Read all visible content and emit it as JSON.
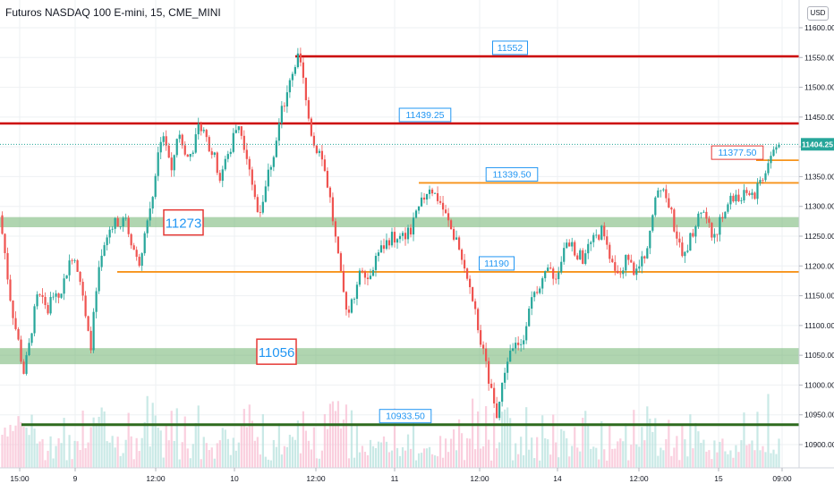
{
  "header": {
    "symbol_title": "Futuros NASDAQ 100 E-mini, 15, CME_MINI",
    "currency_label": "USD"
  },
  "colors": {
    "up_candle": "#26a69a",
    "down_candle": "#ef5350",
    "resistance_red": "#cc0000",
    "level_orange": "#f7931a",
    "support_green": "#2e6b1f",
    "zone_green": "#6fb36f",
    "label_blue": "#2196f3",
    "label_red_border": "#e53935",
    "price_badge": "#26a69a"
  },
  "chart_data": {
    "type": "candlestick",
    "title": "Futuros NASDAQ 100 E-mini, 15, CME_MINI",
    "interval": "15",
    "ylim": [
      10875,
      11650
    ],
    "y_ticks": [
      "11600.00",
      "11550.00",
      "11500.00",
      "11450.00",
      "11400.00",
      "11350.00",
      "11300.00",
      "11250.00",
      "11200.00",
      "11150.00",
      "11100.00",
      "11050.00",
      "11000.00",
      "10950.00",
      "10900.00"
    ],
    "x_ticks": [
      "15:00",
      "9",
      "12:00",
      "10",
      "12:00",
      "11",
      "12:00",
      "14",
      "12:00",
      "15",
      "09:00"
    ],
    "last_price": "11404.25",
    "horizontal_levels": [
      {
        "value": 11552,
        "label": "11552",
        "color": "red",
        "boxed_label": true
      },
      {
        "value": 11439.25,
        "label": "11439.25",
        "color": "red",
        "boxed_label": true
      },
      {
        "value": 11377.5,
        "label": "11377.50",
        "color": "orange",
        "boxed_label": true
      },
      {
        "value": 11339.5,
        "label": "11339.50",
        "color": "orange",
        "boxed_label": true
      },
      {
        "value": 11190,
        "label": "11190",
        "color": "orange",
        "boxed_label": true
      },
      {
        "value": 10933.5,
        "label": "10933.50",
        "color": "green",
        "boxed_label": true
      }
    ],
    "zones": [
      {
        "value": 11273,
        "low": 11265,
        "high": 11282,
        "label": "11273"
      },
      {
        "value": 11056,
        "low": 11035,
        "high": 11062,
        "label": "11056"
      }
    ],
    "price_path": [
      11285,
      11230,
      11160,
      11110,
      11070,
      11020,
      11055,
      11110,
      11150,
      11140,
      11120,
      11155,
      11140,
      11160,
      11190,
      11220,
      11210,
      11170,
      11110,
      11060,
      11140,
      11200,
      11230,
      11260,
      11280,
      11260,
      11280,
      11260,
      11230,
      11200,
      11240,
      11280,
      11320,
      11380,
      11430,
      11400,
      11350,
      11420,
      11410,
      11380,
      11390,
      11410,
      11440,
      11420,
      11400,
      11380,
      11350,
      11370,
      11390,
      11420,
      11440,
      11410,
      11380,
      11330,
      11290,
      11310,
      11350,
      11380,
      11420,
      11460,
      11480,
      11520,
      11550,
      11540,
      11480,
      11430,
      11400,
      11390,
      11360,
      11320,
      11260,
      11200,
      11150,
      11120,
      11150,
      11180,
      11200,
      11180,
      11200,
      11220,
      11230,
      11240,
      11250,
      11240,
      11245,
      11255,
      11260,
      11280,
      11300,
      11320,
      11335,
      11320,
      11310,
      11290,
      11270,
      11250,
      11230,
      11200,
      11170,
      11140,
      11100,
      11060,
      11020,
      10980,
      10950,
      10990,
      11040,
      11060,
      11080,
      11060,
      11100,
      11140,
      11160,
      11170,
      11180,
      11190,
      11175,
      11200,
      11220,
      11240,
      11230,
      11220,
      11210,
      11230,
      11240,
      11250,
      11260,
      11230,
      11200,
      11180,
      11190,
      11210,
      11200,
      11190,
      11200,
      11220,
      11260,
      11300,
      11340,
      11330,
      11300,
      11270,
      11240,
      11210,
      11240,
      11260,
      11280,
      11300,
      11270,
      11250,
      11260,
      11280,
      11300,
      11310,
      11320,
      11310,
      11320,
      11330,
      11320,
      11340,
      11360,
      11380,
      11395,
      11404
    ]
  }
}
